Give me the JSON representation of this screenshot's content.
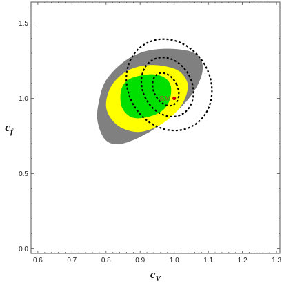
{
  "chart_data": {
    "type": "contour",
    "xlabel": "c",
    "xlabel_sub": "V",
    "ylabel": "c",
    "ylabel_sub": "f",
    "xlim": [
      0.58,
      1.31
    ],
    "ylim": [
      -0.03,
      1.64
    ],
    "xticks": [
      0.6,
      0.7,
      0.8,
      0.9,
      1.0,
      1.1,
      1.2,
      1.3
    ],
    "xtick_labels": [
      "0.6",
      "0.7",
      "0.8",
      "0.9",
      "1.0",
      "1.1",
      "1.2",
      "1.3"
    ],
    "yticks": [
      0.0,
      0.5,
      1.0,
      1.5
    ],
    "ytick_labels": [
      "0.0",
      "0.5",
      "1.0",
      "1.5"
    ],
    "grid": false,
    "colors": {
      "outer_region": "#808080",
      "middle_region": "#ffff00",
      "inner_region": "#00e000",
      "dashed_contours": "#000000",
      "sm_point": "#cc0000",
      "sm_label": "#a0522d"
    },
    "filled_regions": [
      {
        "color": "outer_region",
        "points": [
          [
            0.98,
            1.33
          ],
          [
            1.05,
            1.31
          ],
          [
            1.08,
            1.25
          ],
          [
            1.08,
            1.15
          ],
          [
            1.05,
            1.02
          ],
          [
            1.0,
            0.9
          ],
          [
            0.93,
            0.78
          ],
          [
            0.85,
            0.7
          ],
          [
            0.8,
            0.72
          ],
          [
            0.775,
            0.85
          ],
          [
            0.78,
            0.99
          ],
          [
            0.8,
            1.12
          ],
          [
            0.85,
            1.24
          ],
          [
            0.91,
            1.31
          ]
        ]
      },
      {
        "color": "middle_region",
        "points": [
          [
            0.92,
            1.22
          ],
          [
            0.98,
            1.21
          ],
          [
            1.02,
            1.17
          ],
          [
            1.04,
            1.08
          ],
          [
            1.02,
            0.95
          ],
          [
            0.97,
            0.84
          ],
          [
            0.91,
            0.78
          ],
          [
            0.86,
            0.79
          ],
          [
            0.82,
            0.85
          ],
          [
            0.8,
            0.95
          ],
          [
            0.815,
            1.08
          ],
          [
            0.86,
            1.18
          ]
        ]
      },
      {
        "color": "inner_region",
        "points": [
          [
            0.93,
            1.16
          ],
          [
            0.97,
            1.14
          ],
          [
            0.99,
            1.08
          ],
          [
            0.985,
            0.98
          ],
          [
            0.96,
            0.91
          ],
          [
            0.91,
            0.87
          ],
          [
            0.87,
            0.88
          ],
          [
            0.845,
            0.95
          ],
          [
            0.845,
            1.06
          ],
          [
            0.87,
            1.13
          ]
        ]
      }
    ],
    "dashed_contours": [
      {
        "cx": 0.985,
        "cy": 1.09,
        "rx": 0.12,
        "ry": 0.315,
        "rotation_deg": -32
      },
      {
        "cx": 0.98,
        "cy": 1.075,
        "rx": 0.072,
        "ry": 0.205,
        "rotation_deg": -28
      },
      {
        "cx": 0.975,
        "cy": 1.06,
        "rx": 0.035,
        "ry": 0.115,
        "rotation_deg": -26
      }
    ],
    "points": [
      {
        "label": "SM",
        "x": 1.0,
        "y": 1.0
      }
    ]
  }
}
